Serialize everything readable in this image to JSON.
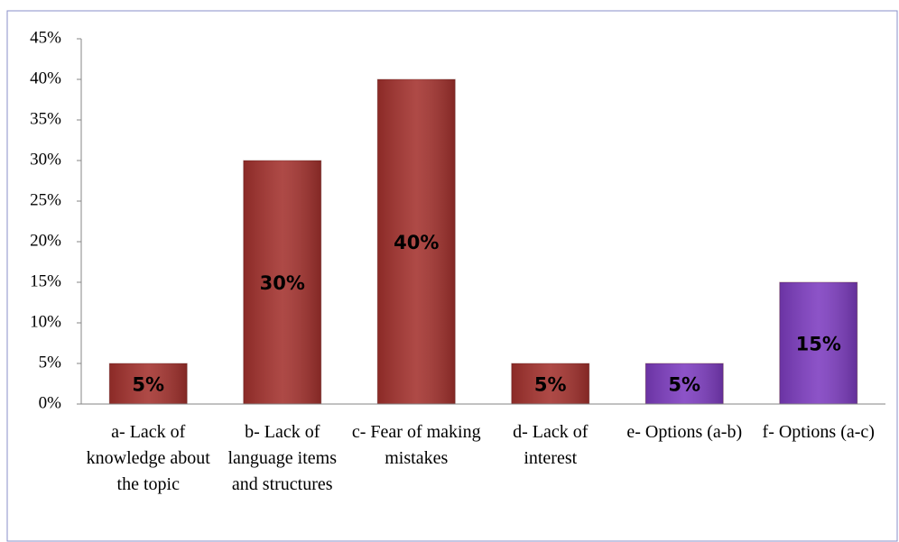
{
  "chart_data": {
    "type": "bar",
    "categories": [
      "a- Lack of knowledge about the topic",
      "b- Lack of language items and structures",
      "c- Fear of making mistakes",
      "d- Lack of interest",
      "e- Options (a-b)",
      "f- Options (a-c)"
    ],
    "values": [
      5,
      30,
      40,
      5,
      5,
      15
    ],
    "value_labels": [
      "5%",
      "30%",
      "40%",
      "5%",
      "5%",
      "15%"
    ],
    "colors": [
      "#a3312d",
      "#a3312d",
      "#a3312d",
      "#a3312d",
      "#7d3cc0",
      "#7d3cc0"
    ],
    "ylim": [
      0,
      45
    ],
    "yticks": [
      {
        "value": 0,
        "label": "0%"
      },
      {
        "value": 5,
        "label": "5%"
      },
      {
        "value": 10,
        "label": "10%"
      },
      {
        "value": 15,
        "label": "15%"
      },
      {
        "value": 20,
        "label": "20%"
      },
      {
        "value": 25,
        "label": "25%"
      },
      {
        "value": 30,
        "label": "30%"
      },
      {
        "value": 35,
        "label": "35%"
      },
      {
        "value": 40,
        "label": "40%"
      },
      {
        "value": 45,
        "label": "45%"
      }
    ],
    "grid": false
  }
}
